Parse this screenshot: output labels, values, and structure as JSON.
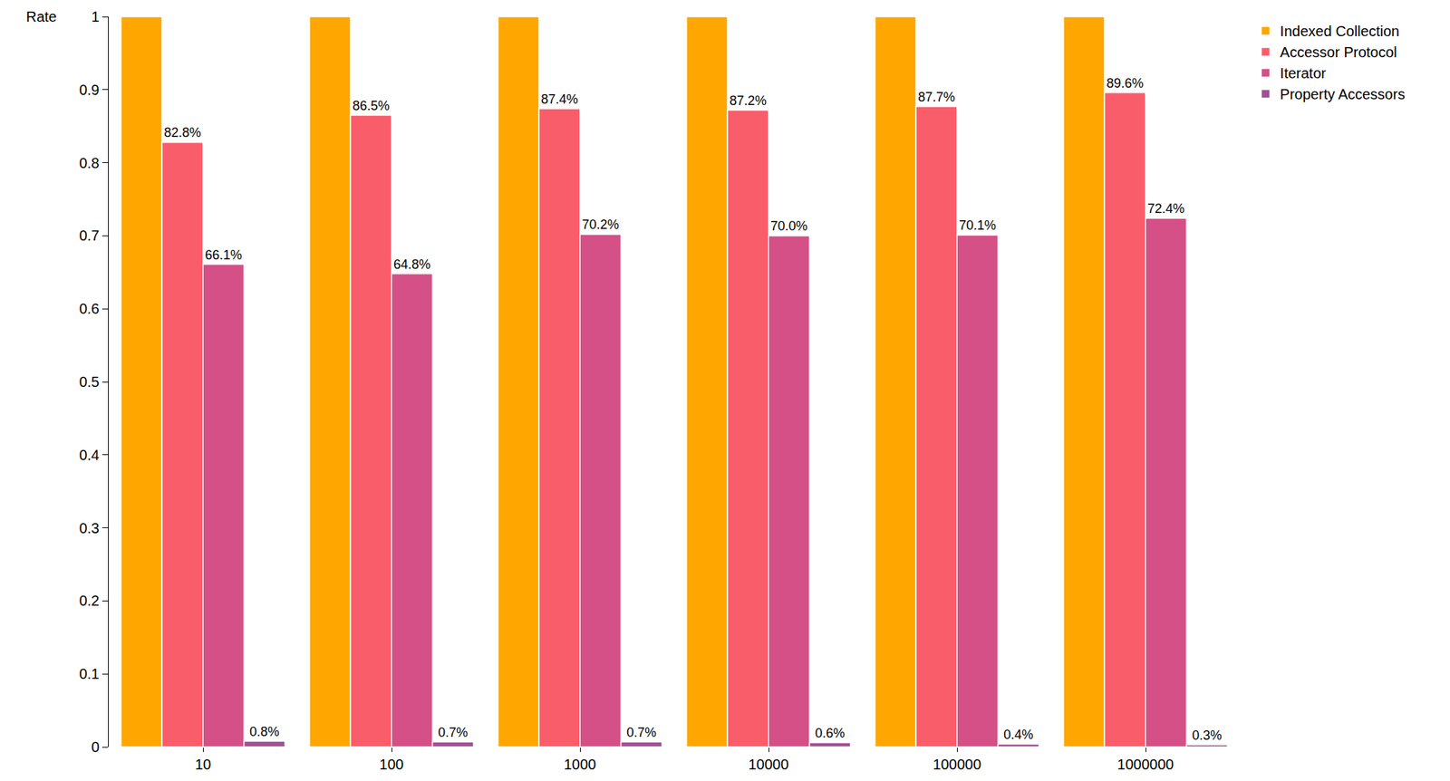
{
  "chart_data": {
    "type": "bar",
    "y_label": "Rate",
    "categories": [
      "10",
      "100",
      "1000",
      "10000",
      "100000",
      "1000000"
    ],
    "series": [
      {
        "name": "Indexed Collection",
        "color": "#ffa600",
        "values": [
          1,
          1,
          1,
          1,
          1,
          1
        ]
      },
      {
        "name": "Accessor Protocol",
        "color": "#f95d6a",
        "values": [
          0.828,
          0.865,
          0.874,
          0.872,
          0.877,
          0.896
        ],
        "value_labels": [
          "82.8%",
          "86.5%",
          "87.4%",
          "87.2%",
          "87.7%",
          "89.6%"
        ]
      },
      {
        "name": "Iterator",
        "color": "#d45087",
        "values": [
          0.661,
          0.648,
          0.702,
          0.7,
          0.701,
          0.724
        ],
        "value_labels": [
          "66.1%",
          "64.8%",
          "70.2%",
          "70.0%",
          "70.1%",
          "72.4%"
        ]
      },
      {
        "name": "Property Accessors",
        "color": "#a05195",
        "values": [
          0.008,
          0.007,
          0.007,
          0.006,
          0.004,
          0.003
        ],
        "value_labels": [
          "0.8%",
          "0.7%",
          "0.7%",
          "0.6%",
          "0.4%",
          "0.3%"
        ]
      }
    ],
    "ylim": [
      0,
      1
    ],
    "yticks": [
      0,
      0.1,
      0.2,
      0.3,
      0.4,
      0.5,
      0.6,
      0.7,
      0.8,
      0.9,
      1
    ],
    "grid": false,
    "legend": "top right",
    "data_labels": true
  }
}
